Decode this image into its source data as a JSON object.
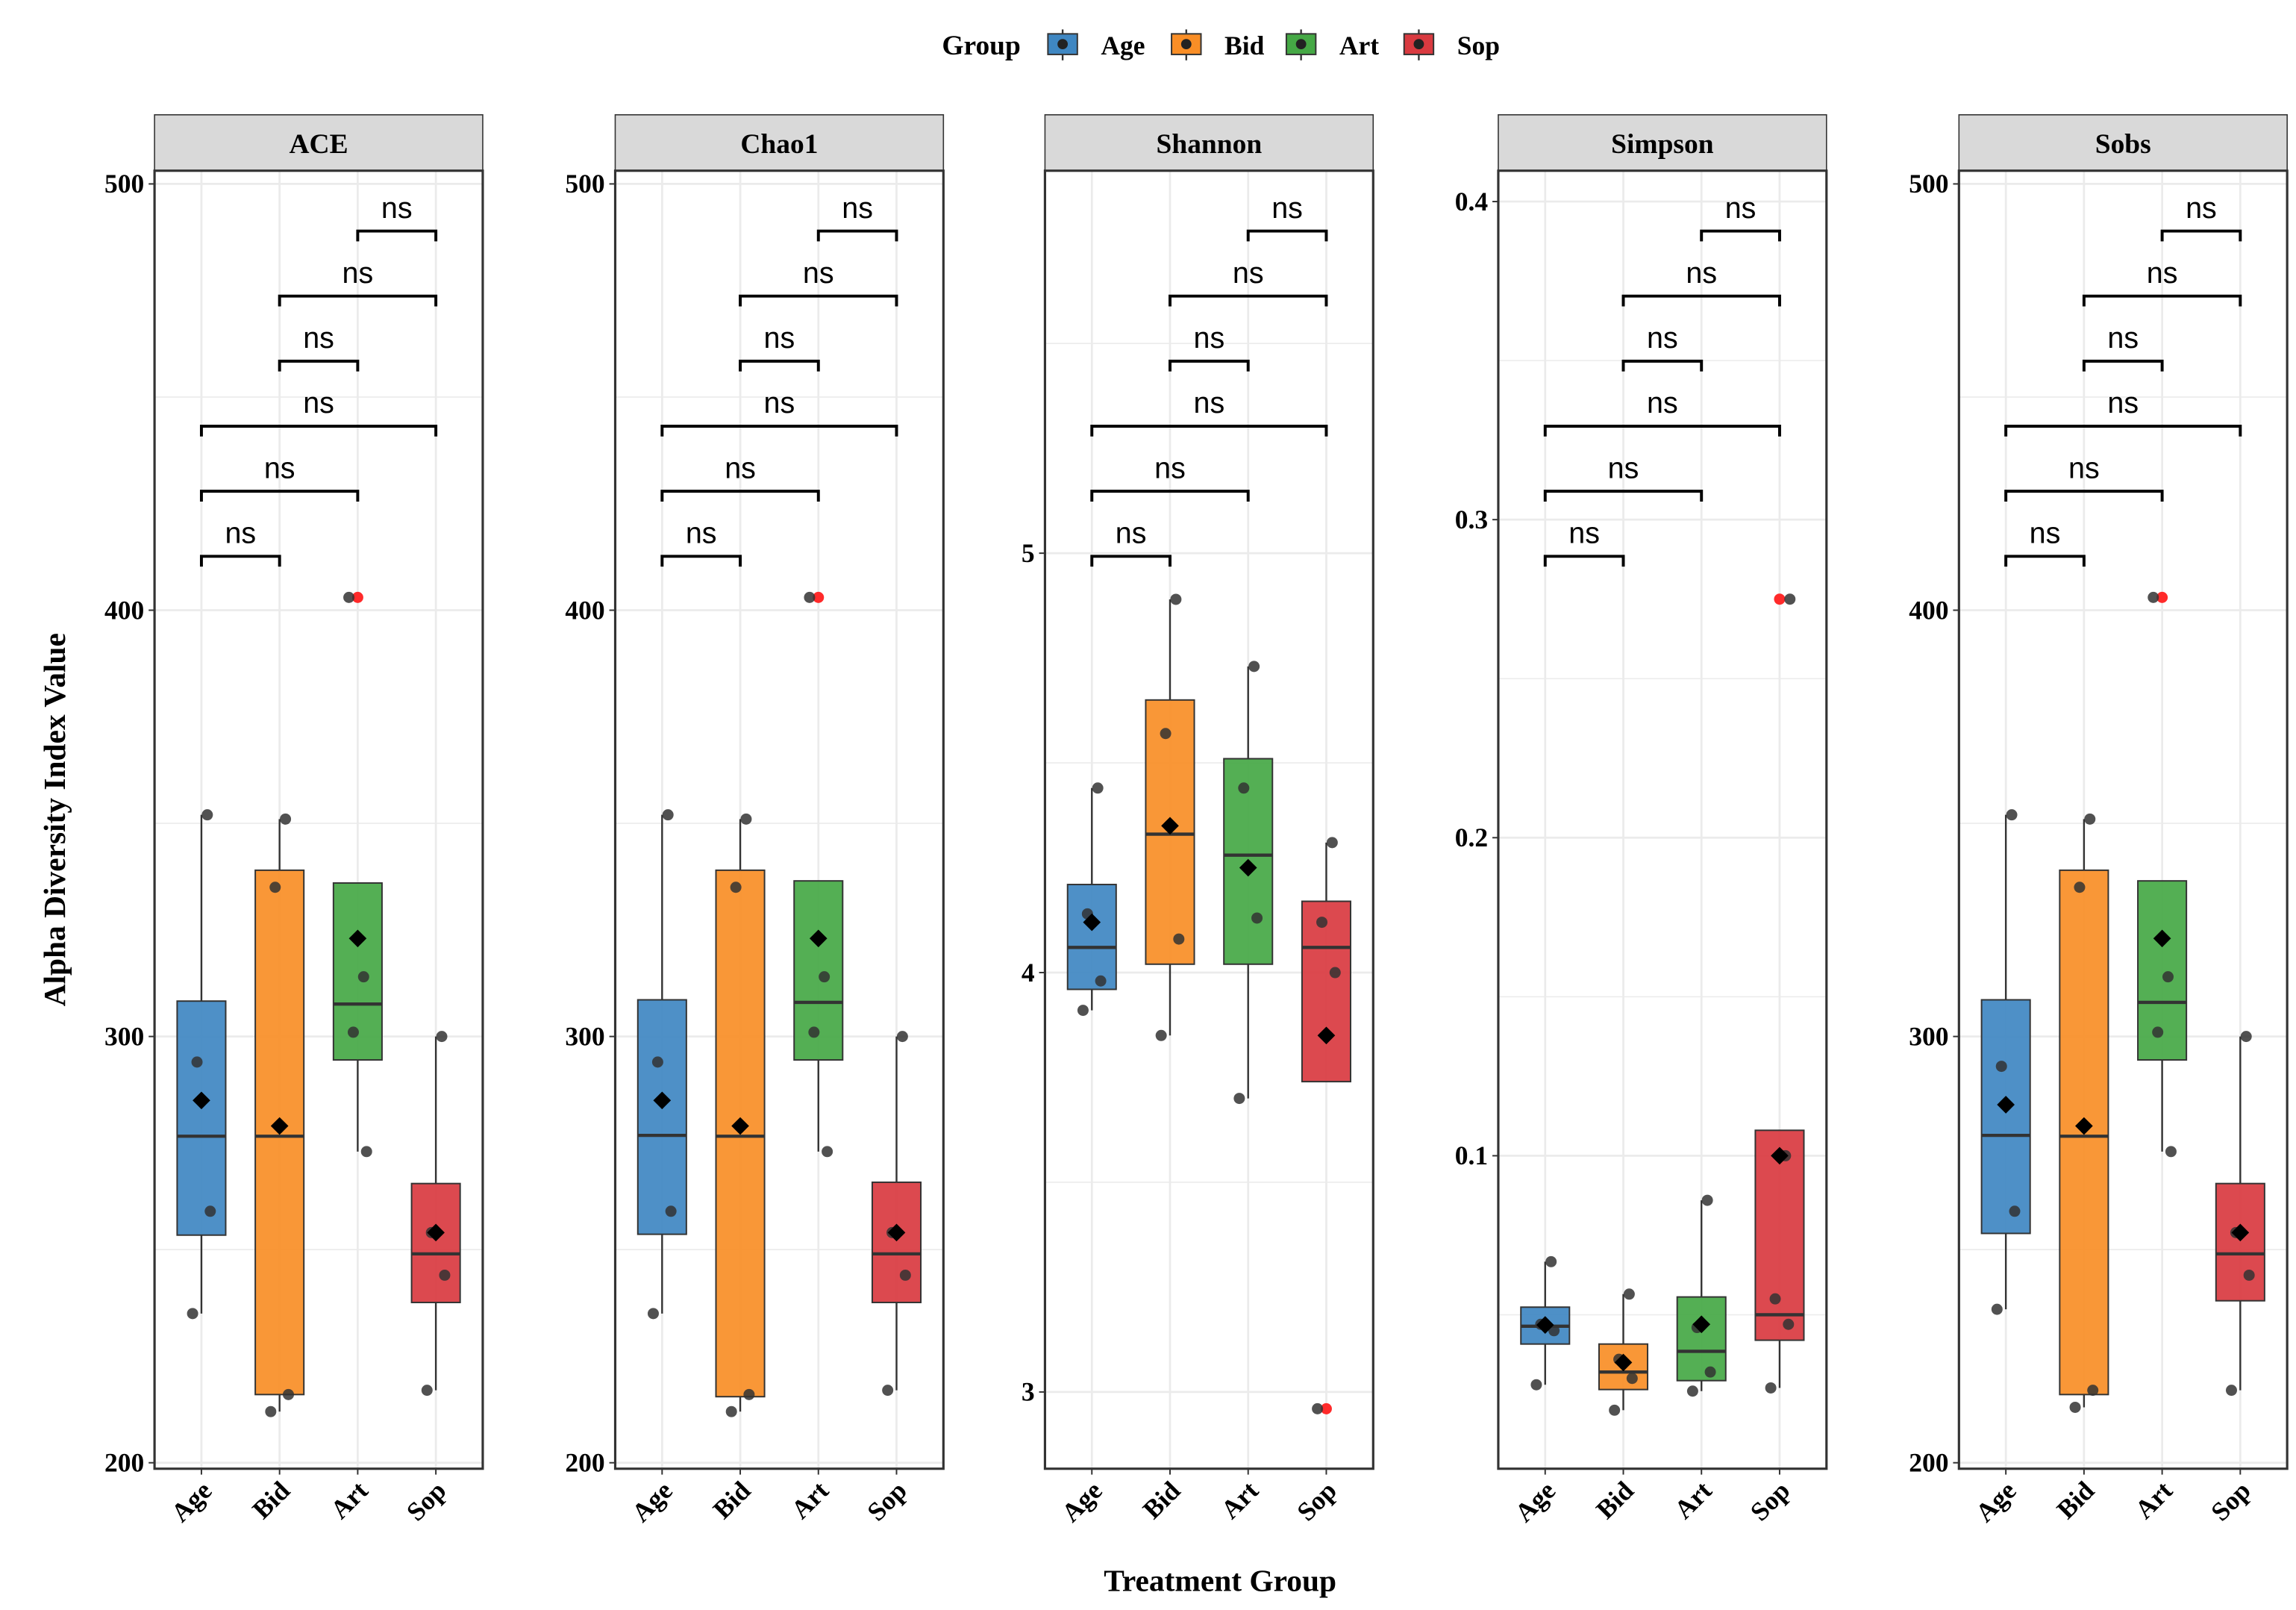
{
  "chart_data": {
    "type": "box",
    "xlabel": "Treatment Group",
    "ylabel": "Alpha Diversity Index Value",
    "legend": {
      "title": "Group",
      "position": "top",
      "entries": [
        "Age",
        "Bid",
        "Art",
        "Sop"
      ]
    },
    "colors": {
      "Age": "#3f87c2",
      "Bid": "#f98e26",
      "Art": "#45a845",
      "Sop": "#d93a40",
      "outlier": "#ff2a2a",
      "point": "#333333"
    },
    "categories": [
      "Age",
      "Bid",
      "Art",
      "Sop"
    ],
    "significance_label": "ns",
    "comparisons": [
      [
        "Age",
        "Bid"
      ],
      [
        "Age",
        "Art"
      ],
      [
        "Age",
        "Sop"
      ],
      [
        "Bid",
        "Art"
      ],
      [
        "Bid",
        "Sop"
      ],
      [
        "Art",
        "Sop"
      ]
    ],
    "panels": [
      {
        "title": "ACE",
        "ylim": [
          198.6,
          503.1
        ],
        "ticks": [
          "200",
          "300",
          "400",
          "500"
        ],
        "tick_values": [
          200,
          300,
          400,
          500
        ],
        "groups": [
          {
            "name": "Age",
            "q1": 253.4,
            "median": 276.6,
            "q3": 308.3,
            "whisker_low": 235,
            "whisker_high": 352,
            "mean": 285,
            "points": [
              352,
              294,
              259,
              235
            ],
            "outliers": []
          },
          {
            "name": "Bid",
            "q1": 216,
            "median": 276.6,
            "q3": 339,
            "whisker_low": 212,
            "whisker_high": 351,
            "mean": 279,
            "points": [
              351,
              335,
              216,
              212
            ],
            "outliers": []
          },
          {
            "name": "Art",
            "q1": 294.5,
            "median": 307.6,
            "q3": 336,
            "whisker_low": 273,
            "whisker_high": 336,
            "mean": 323,
            "points": [
              314,
              301,
              273,
              403
            ],
            "outliers": [
              403
            ]
          },
          {
            "name": "Sop",
            "q1": 237.6,
            "median": 249,
            "q3": 265.5,
            "whisker_low": 217,
            "whisker_high": 300,
            "mean": 254,
            "points": [
              300,
              254,
              244,
              217
            ],
            "outliers": []
          }
        ]
      },
      {
        "title": "Chao1",
        "ylim": [
          198.6,
          503.1
        ],
        "ticks": [
          "200",
          "300",
          "400",
          "500"
        ],
        "tick_values": [
          200,
          300,
          400,
          500
        ],
        "groups": [
          {
            "name": "Age",
            "q1": 253.6,
            "median": 276.8,
            "q3": 308.6,
            "whisker_low": 235,
            "whisker_high": 352,
            "mean": 285,
            "points": [
              352,
              294,
              259,
              235
            ],
            "outliers": []
          },
          {
            "name": "Bid",
            "q1": 215.5,
            "median": 276.6,
            "q3": 339,
            "whisker_low": 212,
            "whisker_high": 351,
            "mean": 279,
            "points": [
              351,
              335,
              216,
              212
            ],
            "outliers": []
          },
          {
            "name": "Art",
            "q1": 294.5,
            "median": 308,
            "q3": 336.5,
            "whisker_low": 273,
            "whisker_high": 336.5,
            "mean": 323,
            "points": [
              314,
              301,
              273,
              403
            ],
            "outliers": [
              403
            ]
          },
          {
            "name": "Sop",
            "q1": 237.6,
            "median": 249,
            "q3": 265.8,
            "whisker_low": 217,
            "whisker_high": 300,
            "mean": 254,
            "points": [
              300,
              254,
              244,
              217
            ],
            "outliers": []
          }
        ]
      },
      {
        "title": "Shannon",
        "ylim": [
          2.817,
          5.912
        ],
        "ticks": [
          "3",
          "4",
          "5"
        ],
        "tick_values": [
          3,
          4,
          5
        ],
        "groups": [
          {
            "name": "Age",
            "q1": 3.96,
            "median": 4.06,
            "q3": 4.21,
            "whisker_low": 3.91,
            "whisker_high": 4.44,
            "mean": 4.12,
            "points": [
              4.44,
              4.14,
              3.98,
              3.91
            ],
            "outliers": []
          },
          {
            "name": "Bid",
            "q1": 4.02,
            "median": 4.33,
            "q3": 4.65,
            "whisker_low": 3.85,
            "whisker_high": 4.89,
            "mean": 4.35,
            "points": [
              4.89,
              4.57,
              4.08,
              3.85
            ],
            "outliers": []
          },
          {
            "name": "Art",
            "q1": 4.02,
            "median": 4.28,
            "q3": 4.51,
            "whisker_low": 3.7,
            "whisker_high": 4.73,
            "mean": 4.25,
            "points": [
              4.73,
              4.44,
              4.13,
              3.7
            ],
            "outliers": []
          },
          {
            "name": "Sop",
            "q1": 3.74,
            "median": 4.06,
            "q3": 4.17,
            "whisker_low": 3.74,
            "whisker_high": 4.31,
            "mean": 3.85,
            "points": [
              4.31,
              4.12,
              4.0,
              2.96
            ],
            "outliers": [
              2.96
            ]
          }
        ]
      },
      {
        "title": "Simpson",
        "ylim": [
          0.0016,
          0.4097
        ],
        "ticks": [
          "0.1",
          "0.2",
          "0.3",
          "0.4"
        ],
        "tick_values": [
          0.1,
          0.2,
          0.3,
          0.4
        ],
        "groups": [
          {
            "name": "Age",
            "q1": 0.0408,
            "median": 0.0464,
            "q3": 0.0524,
            "whisker_low": 0.028,
            "whisker_high": 0.0667,
            "mean": 0.0468,
            "points": [
              0.0667,
              0.047,
              0.045,
              0.028
            ],
            "outliers": []
          },
          {
            "name": "Bid",
            "q1": 0.0265,
            "median": 0.032,
            "q3": 0.0408,
            "whisker_low": 0.02,
            "whisker_high": 0.0565,
            "mean": 0.035,
            "points": [
              0.0565,
              0.036,
              0.03,
              0.02
            ],
            "outliers": []
          },
          {
            "name": "Art",
            "q1": 0.0293,
            "median": 0.0385,
            "q3": 0.0556,
            "whisker_low": 0.026,
            "whisker_high": 0.086,
            "mean": 0.047,
            "points": [
              0.086,
              0.046,
              0.032,
              0.026
            ],
            "outliers": []
          },
          {
            "name": "Sop",
            "q1": 0.042,
            "median": 0.05,
            "q3": 0.108,
            "whisker_low": 0.027,
            "whisker_high": 0.108,
            "mean": 0.1,
            "points": [
              0.1,
              0.055,
              0.047,
              0.027,
              0.275
            ],
            "outliers": [
              0.275
            ]
          }
        ]
      },
      {
        "title": "Sobs",
        "ylim": [
          198.6,
          503.1
        ],
        "ticks": [
          "200",
          "300",
          "400",
          "500"
        ],
        "tick_values": [
          200,
          300,
          400,
          500
        ],
        "groups": [
          {
            "name": "Age",
            "q1": 253.8,
            "median": 276.8,
            "q3": 308.6,
            "whisker_low": 236,
            "whisker_high": 352,
            "mean": 284,
            "points": [
              352,
              293,
              259,
              236
            ],
            "outliers": []
          },
          {
            "name": "Bid",
            "q1": 216,
            "median": 276.6,
            "q3": 339,
            "whisker_low": 213,
            "whisker_high": 351,
            "mean": 279,
            "points": [
              351,
              335,
              217,
              213
            ],
            "outliers": []
          },
          {
            "name": "Art",
            "q1": 294.5,
            "median": 308,
            "q3": 336.5,
            "whisker_low": 273,
            "whisker_high": 336.5,
            "mean": 323,
            "points": [
              314,
              301,
              273,
              403
            ],
            "outliers": [
              403
            ]
          },
          {
            "name": "Sop",
            "q1": 238,
            "median": 249,
            "q3": 265.5,
            "whisker_low": 217,
            "whisker_high": 300,
            "mean": 254,
            "points": [
              300,
              254,
              244,
              217
            ],
            "outliers": []
          }
        ]
      }
    ]
  }
}
